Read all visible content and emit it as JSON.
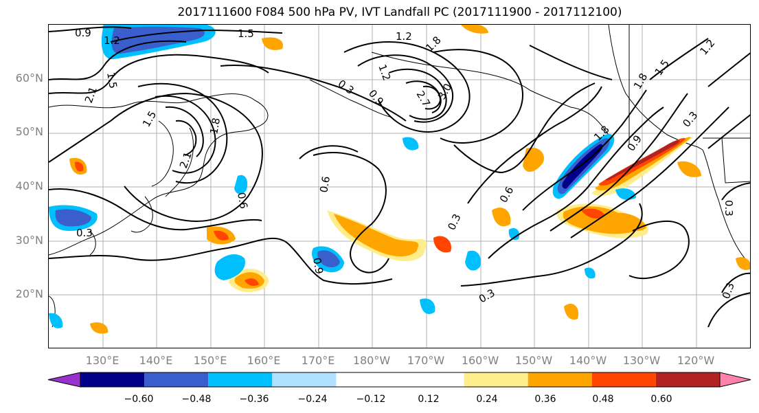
{
  "title": "2017111600 F084 500 hPa PV, IVT Landfall PC (2017111900 - 2017112100)",
  "lat_labels": [
    "60°N",
    "50°N",
    "40°N",
    "30°N",
    "20°N"
  ],
  "lon_labels": [
    "130°E",
    "140°E",
    "150°E",
    "160°E",
    "170°E",
    "180°W",
    "170°W",
    "160°W",
    "150°W",
    "140°W",
    "130°W",
    "120°W"
  ],
  "colorbar": {
    "colors": [
      "#9932cc",
      "#00008b",
      "#3a5fcd",
      "#00bfff",
      "#b0e2ff",
      "#ffffff",
      "#ffffff",
      "#ffec8b",
      "#ffa500",
      "#ff4500",
      "#b22222",
      "#ff82ab"
    ],
    "tick_labels": [
      "−0.60",
      "−0.48",
      "−0.36",
      "−0.24",
      "−0.12",
      "0.12",
      "0.24",
      "0.36",
      "0.48",
      "0.60"
    ]
  },
  "contour_labels": [
    "0.9",
    "1.2",
    "1.5",
    "1.2",
    "1.5",
    "2.1",
    "1.5",
    "1.8",
    "2.1",
    "0.3",
    "0.9",
    "1.2",
    "1.8",
    "2.7",
    "3.0",
    "0.6",
    "0.6",
    "0.6",
    "0.3",
    "0.3",
    "0.9",
    "1.8",
    "0.9",
    "1.2",
    "1.5",
    "1.8",
    "0.3",
    "0.3",
    "0.3",
    "0.3"
  ],
  "shading_colors": {
    "positive_light": "#ffec8b",
    "positive_mid": "#ffa500",
    "positive_strong": "#ff4500",
    "positive_max": "#b22222",
    "negative_light": "#00bfff",
    "negative_mid": "#3a5fcd",
    "negative_strong": "#00008b"
  }
}
